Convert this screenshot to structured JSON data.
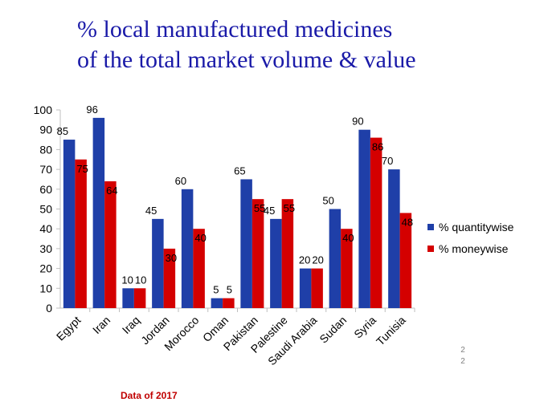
{
  "slide": {
    "title_line1": "% local manufactured medicines",
    "title_line2": "of the total market volume & value",
    "page_number": "2\n2",
    "footnote": "Data of 2017"
  },
  "colors": {
    "series1": "#1f3fa8",
    "series2": "#d40000",
    "axis": "#bfbfbf",
    "text": "#000000"
  },
  "chart_data": {
    "type": "bar",
    "title": "",
    "xlabel": "",
    "ylabel": "",
    "ylim": [
      0,
      100
    ],
    "yticks": [
      0,
      10,
      20,
      30,
      40,
      50,
      60,
      70,
      80,
      90,
      100
    ],
    "grid": false,
    "legend_position": "right",
    "categories": [
      "Egypt",
      "Iran",
      "Iraq",
      "Jordan",
      "Morocco",
      "Oman",
      "Pakistan",
      "Palestine",
      "Saudi Arabia",
      "Sudan",
      "Syria",
      "Tunisia"
    ],
    "series": [
      {
        "name": "% quantitywise",
        "values": [
          85,
          96,
          10,
          45,
          60,
          5,
          65,
          45,
          20,
          50,
          90,
          70
        ]
      },
      {
        "name": "% moneywise",
        "values": [
          75,
          64,
          10,
          30,
          40,
          5,
          55,
          55,
          20,
          40,
          86,
          48
        ]
      }
    ]
  }
}
